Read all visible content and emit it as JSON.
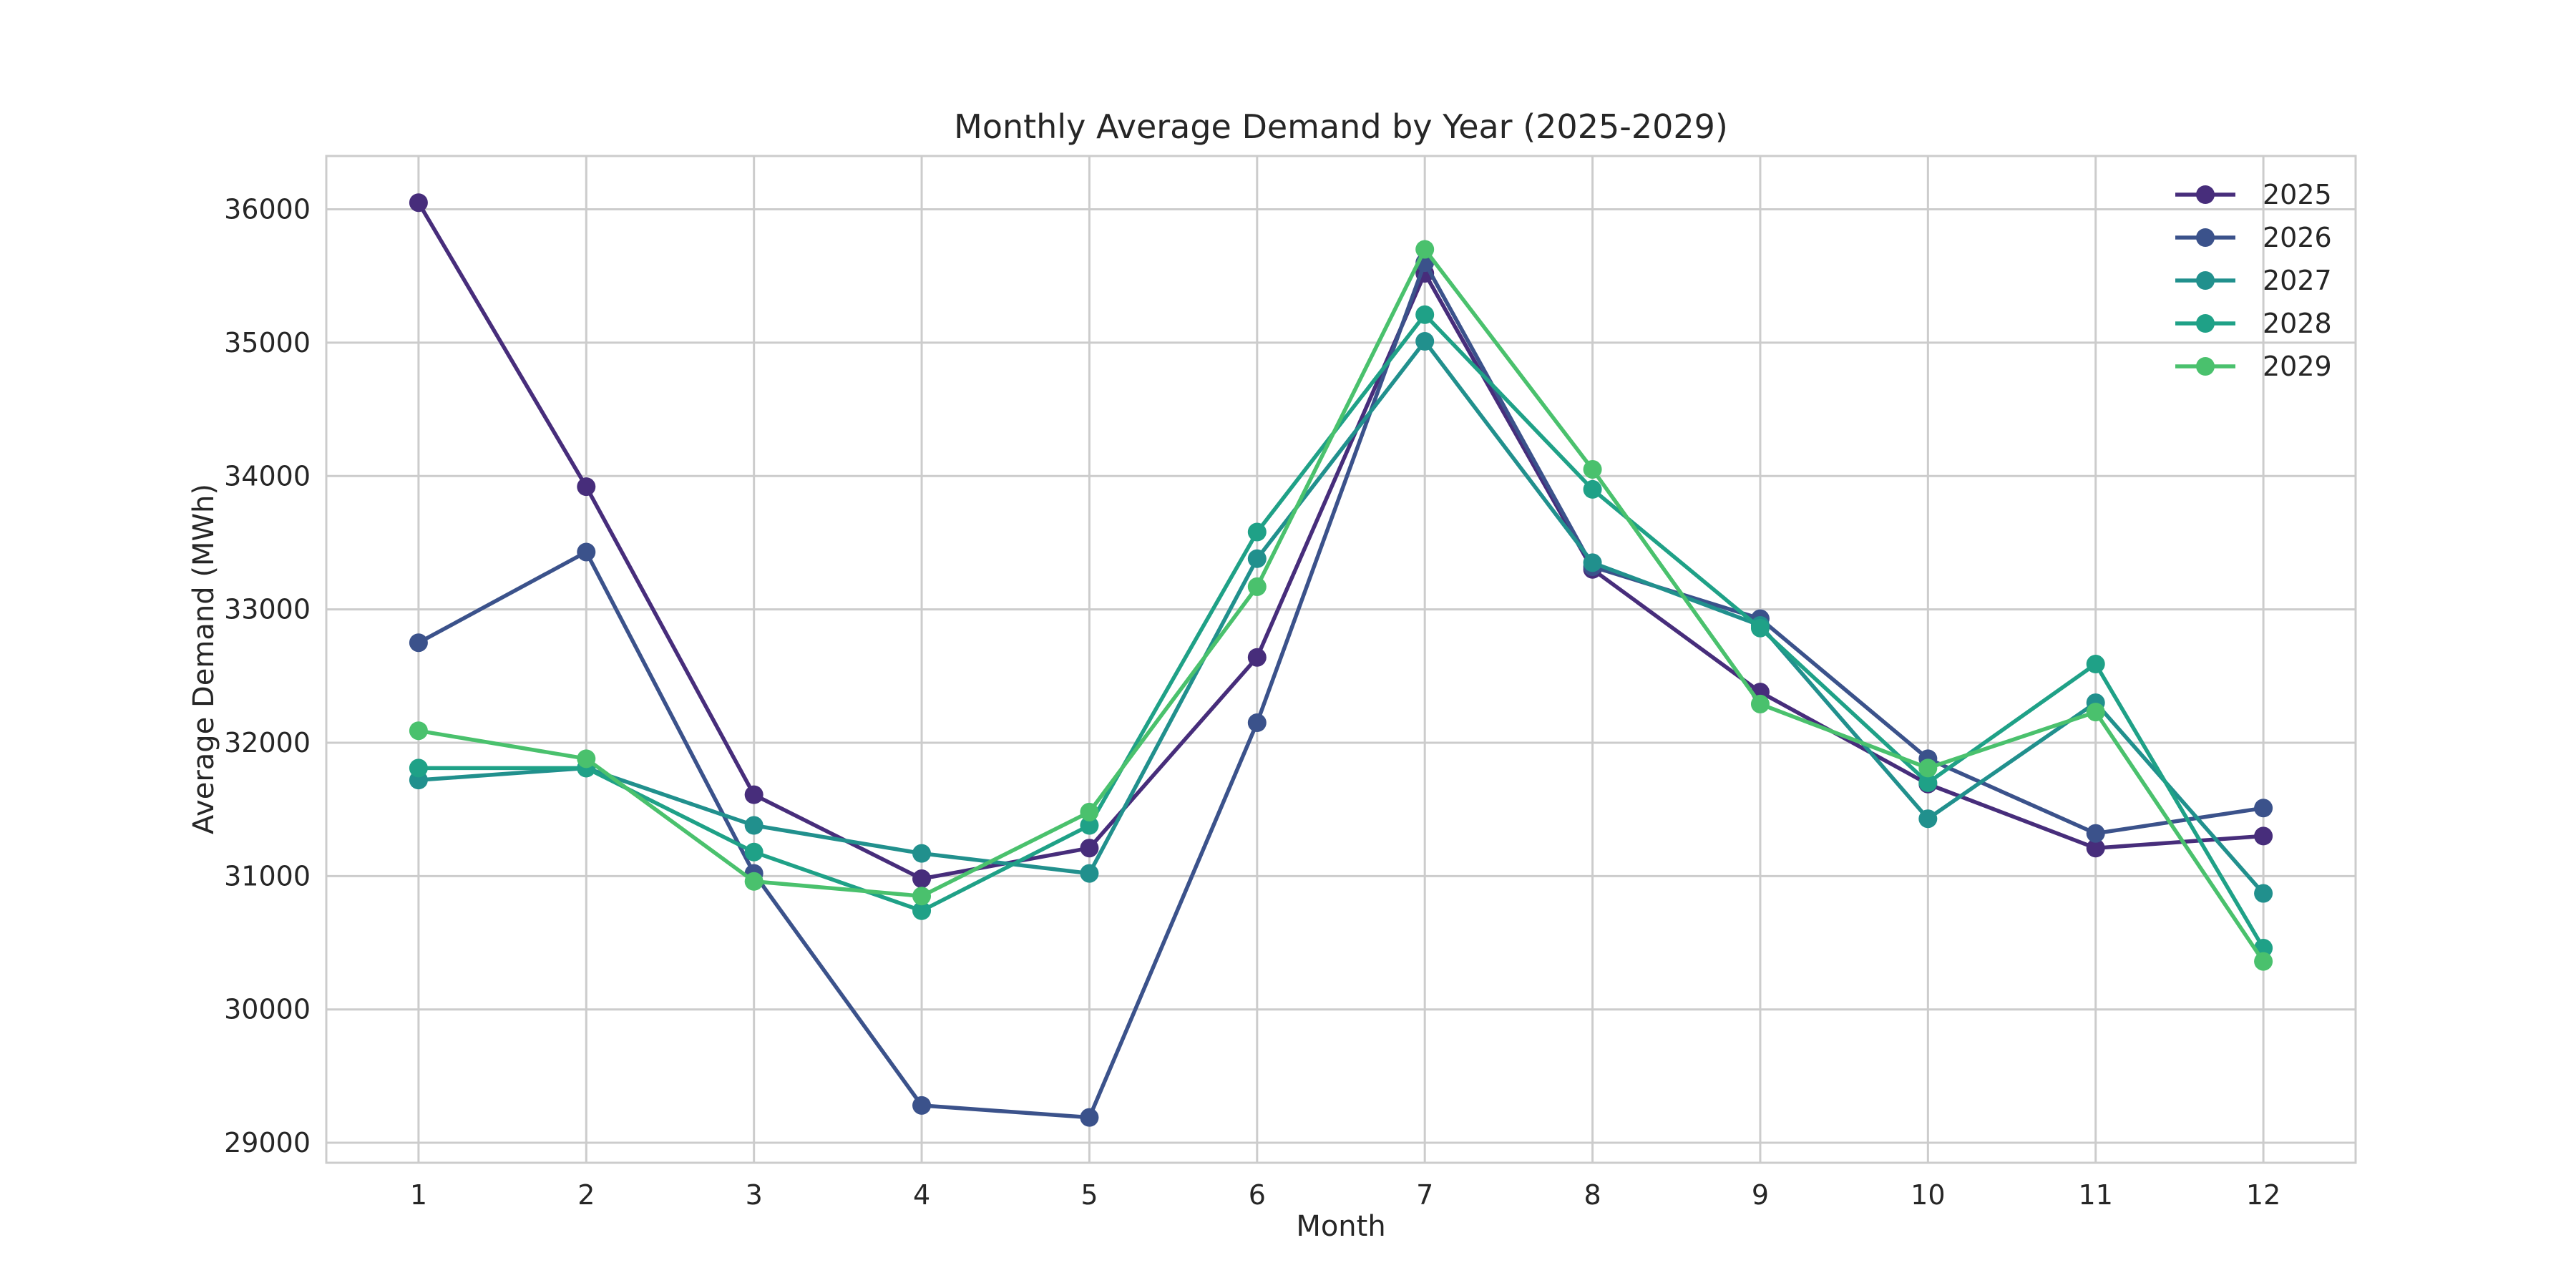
{
  "chart_data": {
    "type": "line",
    "title": "Monthly Average Demand by Year (2025-2029)",
    "xlabel": "Month",
    "ylabel": "Average Demand (MWh)",
    "x": [
      1,
      2,
      3,
      4,
      5,
      6,
      7,
      8,
      9,
      10,
      11,
      12
    ],
    "xlim": [
      0.45,
      12.55
    ],
    "ylim": [
      28850,
      36400
    ],
    "yticks": [
      29000,
      30000,
      31000,
      32000,
      33000,
      34000,
      35000,
      36000
    ],
    "grid": true,
    "legend_position": "top-right",
    "series": [
      {
        "name": "2025",
        "color": "#472d7b",
        "values": [
          36050,
          33920,
          31610,
          30980,
          31210,
          32640,
          35520,
          33300,
          32380,
          31690,
          31210,
          31300
        ]
      },
      {
        "name": "2026",
        "color": "#3b528b",
        "values": [
          32750,
          33430,
          31020,
          29280,
          29190,
          32150,
          35600,
          33320,
          32930,
          31880,
          31320,
          31510
        ]
      },
      {
        "name": "2027",
        "color": "#21908d",
        "values": [
          31720,
          31810,
          31380,
          31170,
          31020,
          33380,
          35010,
          33350,
          32880,
          31430,
          32300,
          30870
        ]
      },
      {
        "name": "2028",
        "color": "#1fa187",
        "values": [
          31810,
          31810,
          31180,
          30740,
          31380,
          33580,
          35210,
          33900,
          32860,
          31700,
          32590,
          30460
        ]
      },
      {
        "name": "2029",
        "color": "#4ac16d",
        "values": [
          32090,
          31880,
          30960,
          30850,
          31480,
          33170,
          35700,
          34050,
          32290,
          31810,
          32230,
          30360
        ]
      }
    ]
  }
}
